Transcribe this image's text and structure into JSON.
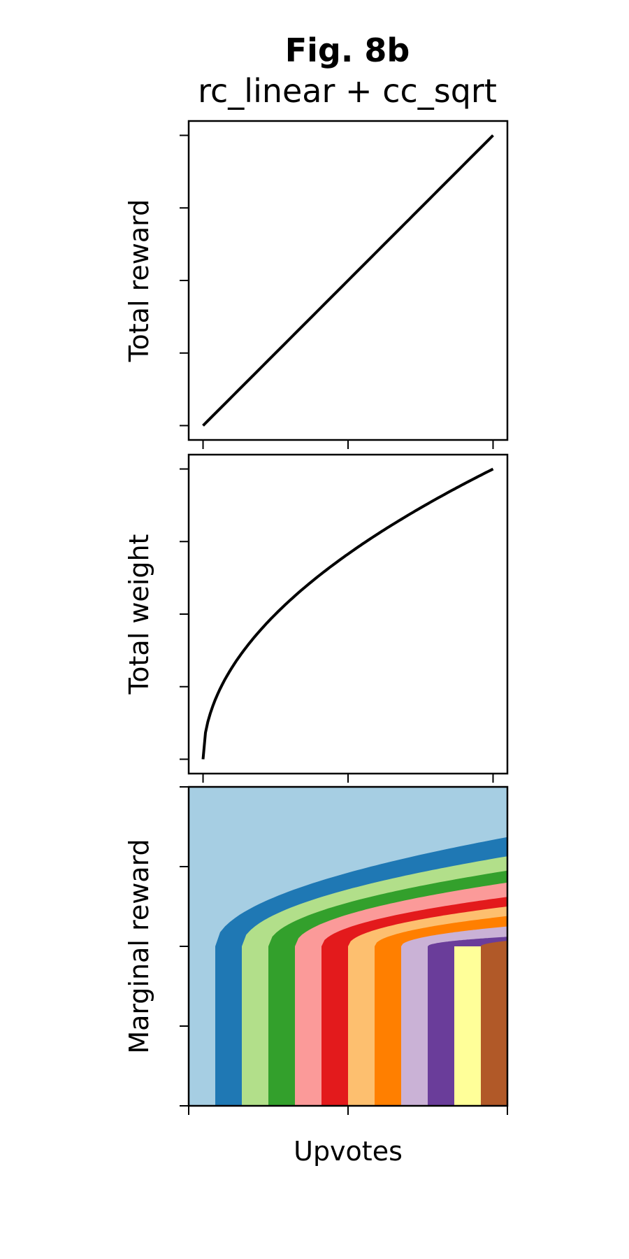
{
  "title": "Fig. 8b",
  "subtitle": "rc_linear + cc_sqrt",
  "chart_data": [
    {
      "type": "line",
      "ylabel": "Total reward",
      "xlim": [
        0,
        1
      ],
      "ylim": [
        0,
        1
      ],
      "x_ticks": [
        0,
        0.5,
        1
      ],
      "y_ticks": [
        0,
        0.25,
        0.5,
        0.75,
        1
      ],
      "show_tick_labels": false,
      "function": "linear",
      "series": [
        {
          "x": [
            0,
            1
          ],
          "y": [
            0,
            1
          ],
          "color": "#000000"
        }
      ]
    },
    {
      "type": "line",
      "ylabel": "Total weight",
      "xlim": [
        0,
        1
      ],
      "ylim": [
        0,
        1
      ],
      "x_ticks": [
        0,
        0.5,
        1
      ],
      "y_ticks": [
        0,
        0.25,
        0.5,
        0.75,
        1
      ],
      "show_tick_labels": false,
      "function": "sqrt",
      "series": [
        {
          "x": [
            0,
            0.25,
            0.5,
            0.75,
            1
          ],
          "y": [
            0,
            0.5,
            0.707,
            0.866,
            1
          ],
          "color": "#000000"
        }
      ]
    },
    {
      "type": "area",
      "ylabel": "Marginal reward",
      "xlabel": "Upvotes",
      "xlim": [
        0,
        12
      ],
      "ylim": [
        0,
        4
      ],
      "x_ticks": [
        0,
        6,
        12
      ],
      "y_ticks": [
        0,
        1,
        2,
        3,
        4
      ],
      "show_tick_labels": false,
      "background_color": "#a6cee3",
      "bands": [
        {
          "start": 1,
          "top_at_end": 3.37,
          "color": "#1f78b4"
        },
        {
          "start": 2,
          "top_at_end": 3.13,
          "color": "#b2df8a"
        },
        {
          "start": 3,
          "top_at_end": 2.95,
          "color": "#33a02c"
        },
        {
          "start": 4,
          "top_at_end": 2.8,
          "color": "#fb9a99"
        },
        {
          "start": 5,
          "top_at_end": 2.62,
          "color": "#e31a1c"
        },
        {
          "start": 6,
          "top_at_end": 2.5,
          "color": "#fdbf6f"
        },
        {
          "start": 7,
          "top_at_end": 2.38,
          "color": "#ff7f00"
        },
        {
          "start": 8,
          "top_at_end": 2.25,
          "color": "#cab2d6"
        },
        {
          "start": 9,
          "top_at_end": 2.12,
          "color": "#6a3d9a"
        },
        {
          "start": 10,
          "top_at_end": 2.0,
          "color": "#ffff99"
        },
        {
          "start": 11,
          "top_at_end": 2.07,
          "color": "#b15928"
        }
      ]
    }
  ]
}
